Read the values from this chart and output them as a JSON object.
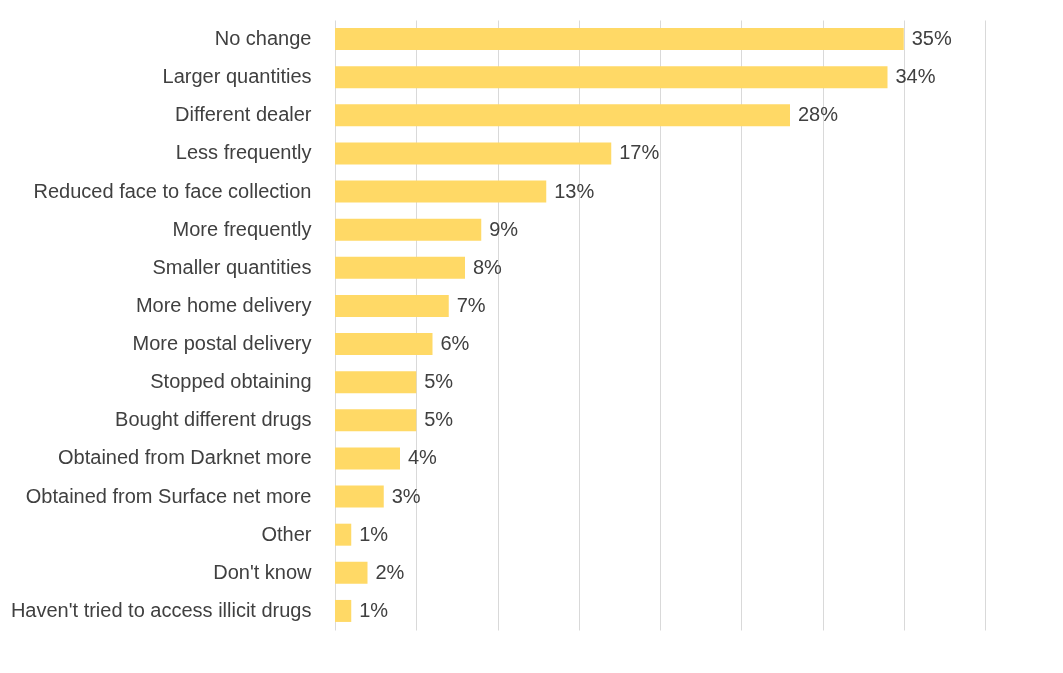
{
  "chart_data": {
    "type": "bar",
    "orientation": "horizontal",
    "categories": [
      "No change",
      "Larger quantities",
      "Different dealer",
      "Less frequently",
      "Reduced face to face collection",
      "More frequently",
      "Smaller quantities",
      "More home delivery",
      "More postal delivery",
      "Stopped obtaining",
      "Bought different drugs",
      "Obtained from Darknet more",
      "Obtained from Surface net more",
      "Other",
      "Don't know",
      "Haven't tried to access illicit drugs"
    ],
    "values": [
      35,
      34,
      28,
      17,
      13,
      9,
      8,
      7,
      6,
      5,
      5,
      4,
      3,
      1,
      2,
      1
    ],
    "value_labels": [
      "35%",
      "34%",
      "28%",
      "17%",
      "13%",
      "9%",
      "8%",
      "7%",
      "6%",
      "5%",
      "5%",
      "4%",
      "3%",
      "1%",
      "2%",
      "1%"
    ],
    "color": "#ffd966",
    "xlim": [
      0,
      40
    ],
    "xticks": [
      {
        "value": 0,
        "label": null
      },
      {
        "value": 5,
        "label": null
      },
      {
        "value": 10,
        "label": null
      },
      {
        "value": 15,
        "label": null
      },
      {
        "value": 20,
        "label": null
      },
      {
        "value": 25,
        "label": null
      },
      {
        "value": 30,
        "label": null
      },
      {
        "value": 35,
        "label": null
      },
      {
        "value": 40,
        "label": null
      }
    ],
    "grid": "x",
    "tick_labels": "y"
  }
}
